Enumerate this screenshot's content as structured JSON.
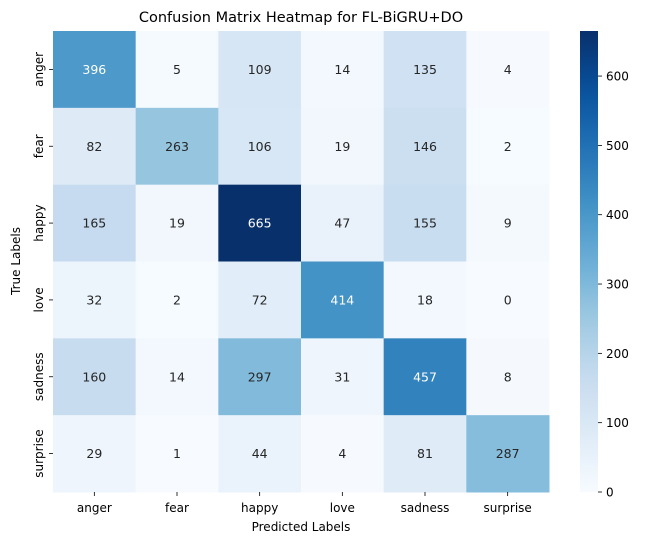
{
  "chart_data": {
    "type": "heatmap",
    "title": "Confusion Matrix Heatmap for FL-BiGRU+DO",
    "xlabel": "Predicted Labels",
    "ylabel": "True Labels",
    "x_categories": [
      "anger",
      "fear",
      "happy",
      "love",
      "sadness",
      "surprise"
    ],
    "y_categories": [
      "anger",
      "fear",
      "happy",
      "love",
      "sadness",
      "surprise"
    ],
    "values": [
      [
        396,
        5,
        109,
        14,
        135,
        4
      ],
      [
        82,
        263,
        106,
        19,
        146,
        2
      ],
      [
        165,
        19,
        665,
        47,
        155,
        9
      ],
      [
        32,
        2,
        72,
        414,
        18,
        0
      ],
      [
        160,
        14,
        297,
        31,
        457,
        8
      ],
      [
        29,
        1,
        44,
        4,
        81,
        287
      ]
    ],
    "colorscale": "Blues",
    "vmin": 0,
    "vmax": 665,
    "colorbar_ticks": [
      "0",
      "100",
      "200",
      "300",
      "400",
      "500",
      "600"
    ]
  }
}
